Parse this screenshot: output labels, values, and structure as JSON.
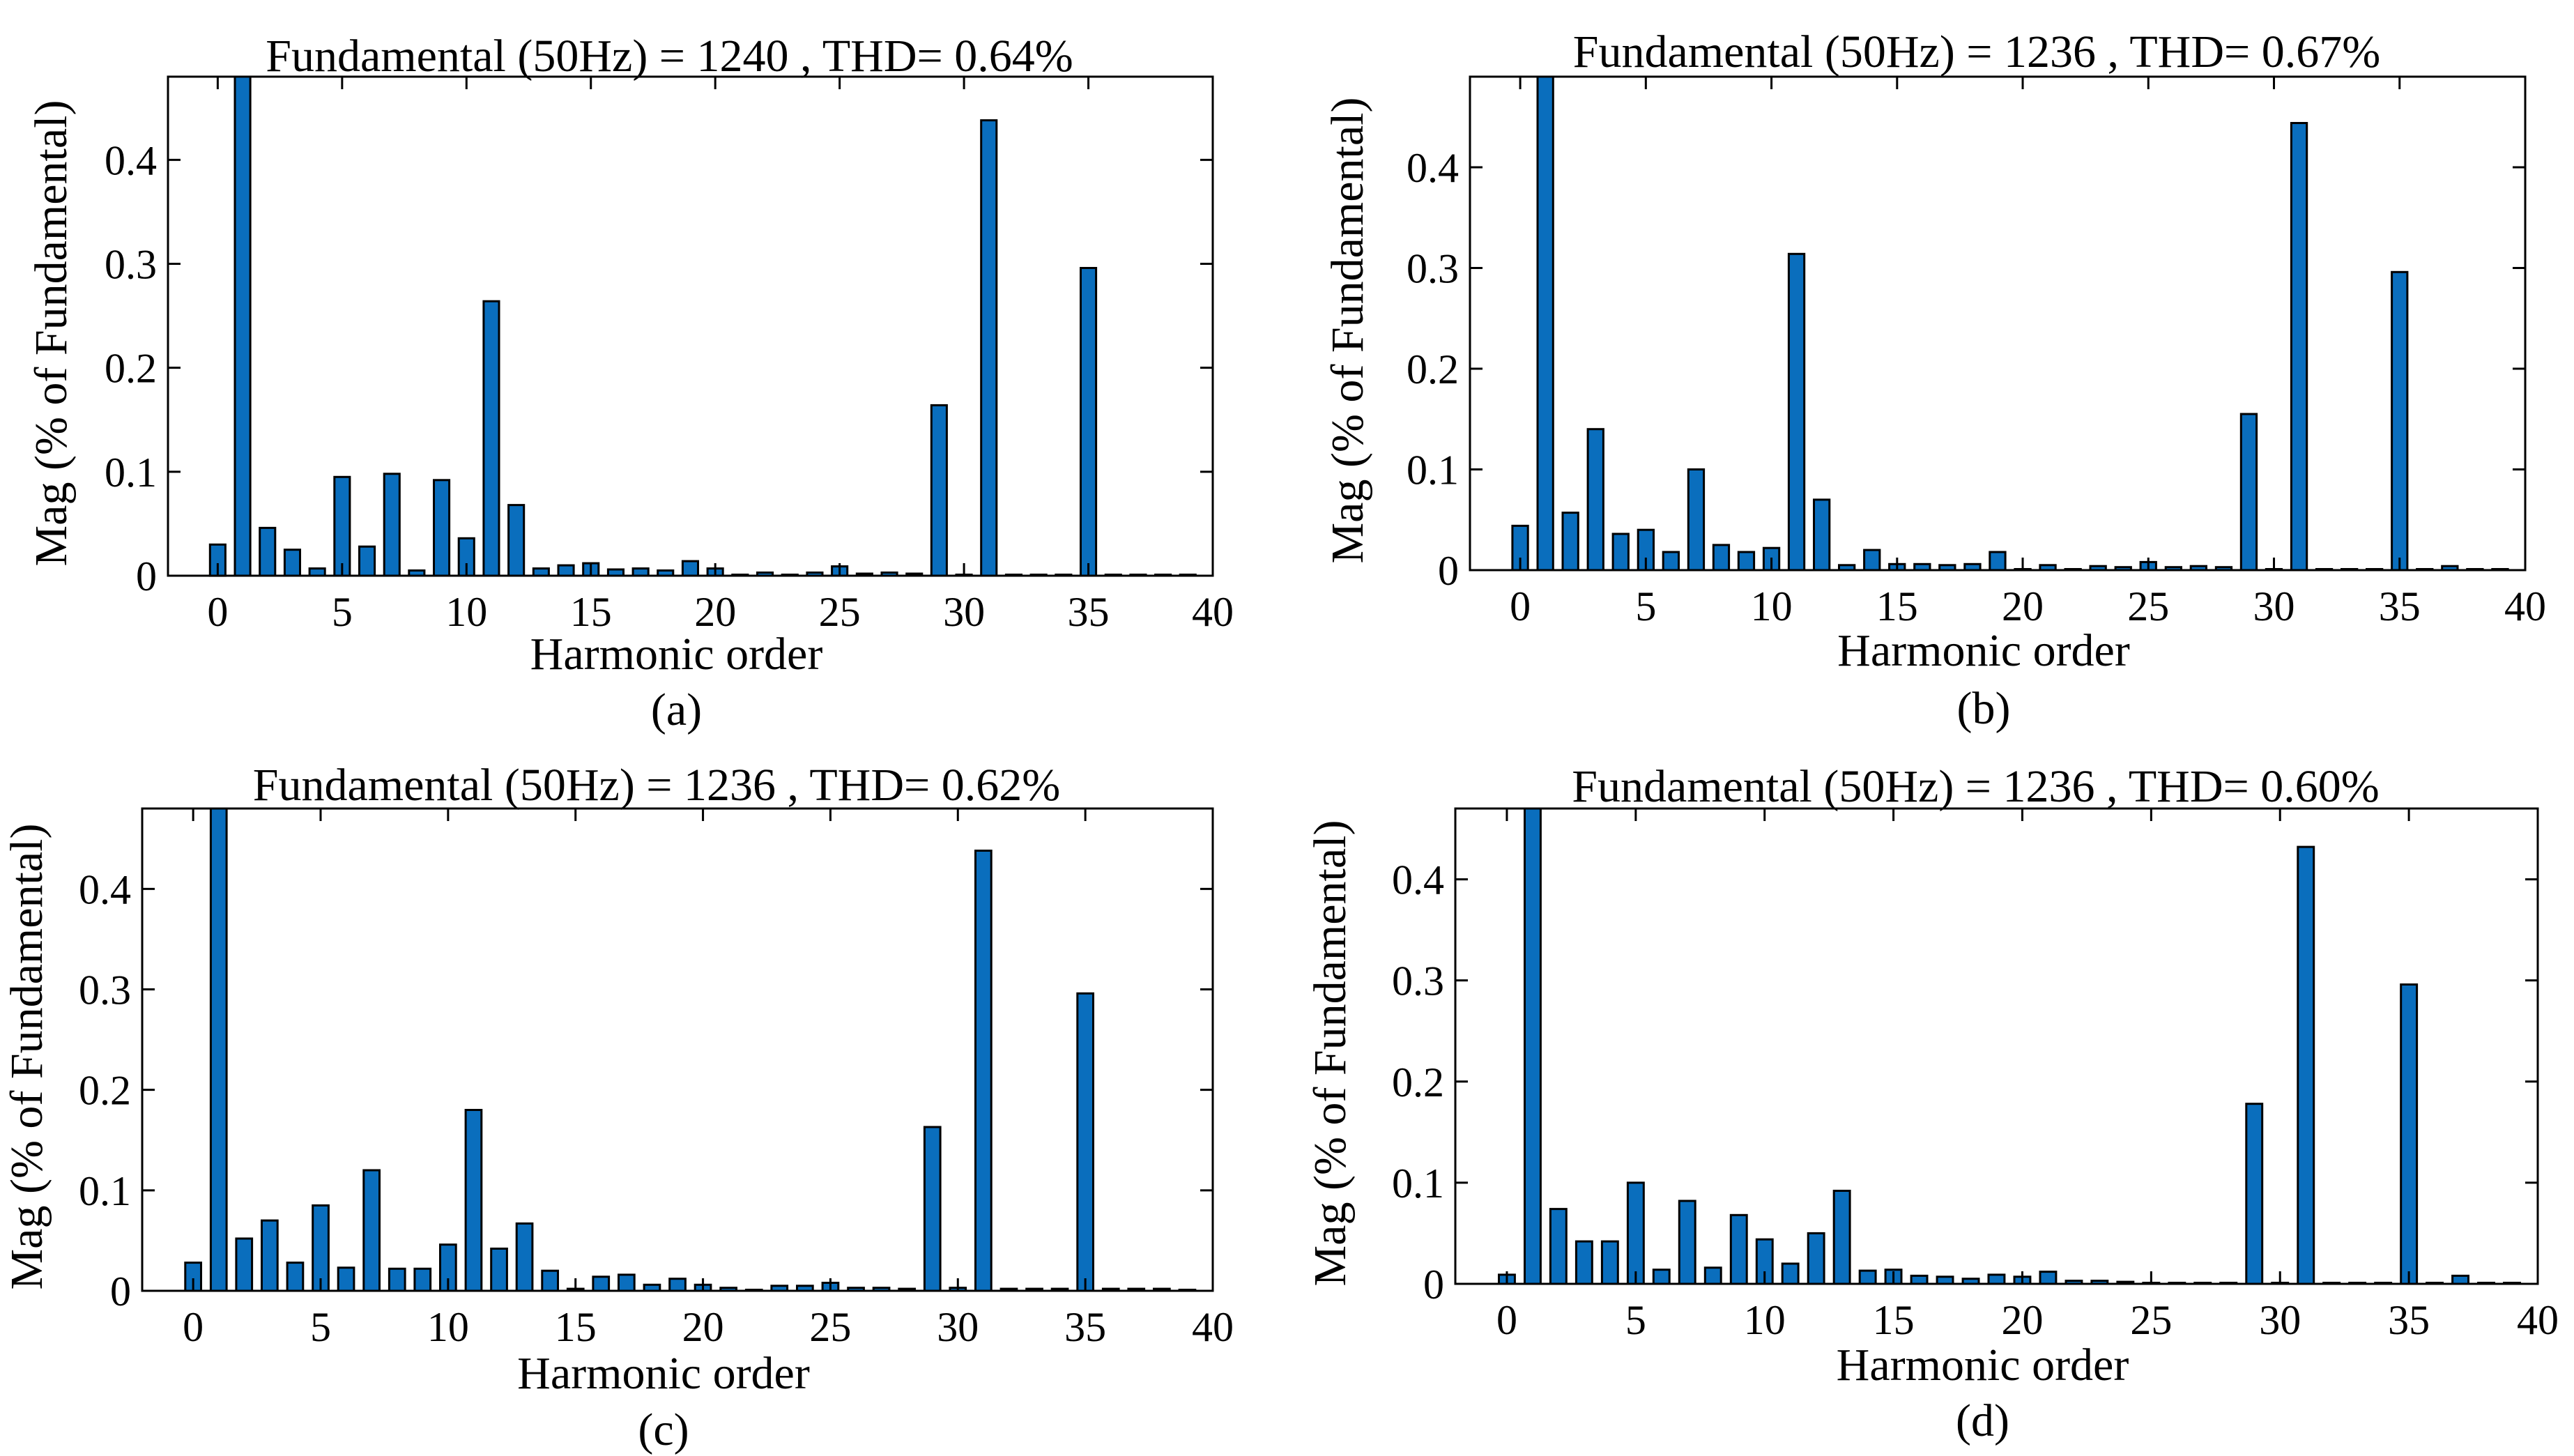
{
  "chart_data": [
    {
      "type": "bar",
      "panel_label": "(a)",
      "title": "Fundamental (50Hz) = 1240 , THD= 0.64%",
      "xlabel": "Harmonic order",
      "ylabel": "Mag (% of Fundamental)",
      "xlim": [
        -2,
        40
      ],
      "ylim": [
        0,
        0.48
      ],
      "xticks": [
        0,
        5,
        10,
        15,
        20,
        25,
        30,
        35,
        40
      ],
      "yticks": [
        0,
        0.1,
        0.2,
        0.3,
        0.4
      ],
      "ytick_labels": [
        "0",
        "0.1",
        "0.2",
        "0.3",
        "0.4"
      ],
      "x": [
        0,
        1,
        2,
        3,
        4,
        5,
        6,
        7,
        8,
        9,
        10,
        11,
        12,
        13,
        14,
        15,
        16,
        17,
        18,
        19,
        20,
        21,
        22,
        23,
        24,
        25,
        26,
        27,
        28,
        29,
        30,
        31,
        32,
        33,
        34,
        35,
        36,
        37,
        38,
        39
      ],
      "values": [
        0.03,
        0.48,
        0.046,
        0.025,
        0.007,
        0.095,
        0.028,
        0.098,
        0.005,
        0.092,
        0.036,
        0.264,
        0.068,
        0.007,
        0.01,
        0.012,
        0.006,
        0.007,
        0.005,
        0.014,
        0.007,
        0,
        0.003,
        0,
        0.003,
        0.009,
        0.002,
        0.003,
        0.002,
        0.164,
        0,
        0.438,
        0.001,
        0.001,
        0.001,
        0.296,
        0,
        0,
        0,
        0
      ],
      "bar_color": "#0a6ebd"
    },
    {
      "type": "bar",
      "panel_label": "(b)",
      "title": "Fundamental (50Hz) = 1236 , THD= 0.67%",
      "xlabel": "Harmonic order",
      "ylabel": "Mag (% of Fundamental)",
      "xlim": [
        -2,
        40
      ],
      "ylim": [
        0,
        0.49
      ],
      "xticks": [
        0,
        5,
        10,
        15,
        20,
        25,
        30,
        35,
        40
      ],
      "yticks": [
        0,
        0.1,
        0.2,
        0.3,
        0.4
      ],
      "ytick_labels": [
        "0",
        "0.1",
        "0.2",
        "0.3",
        "0.4"
      ],
      "x": [
        0,
        1,
        2,
        3,
        4,
        5,
        6,
        7,
        8,
        9,
        10,
        11,
        12,
        13,
        14,
        15,
        16,
        17,
        18,
        19,
        20,
        21,
        22,
        23,
        24,
        25,
        26,
        27,
        28,
        29,
        30,
        31,
        32,
        33,
        34,
        35,
        36,
        37,
        38,
        39
      ],
      "values": [
        0.044,
        0.49,
        0.057,
        0.14,
        0.036,
        0.04,
        0.018,
        0.1,
        0.025,
        0.018,
        0.022,
        0.314,
        0.07,
        0.005,
        0.02,
        0.006,
        0.006,
        0.005,
        0.006,
        0.018,
        0,
        0.005,
        0,
        0.004,
        0.003,
        0.008,
        0.003,
        0.004,
        0.003,
        0.155,
        0,
        0.444,
        0.001,
        0.001,
        0.001,
        0.296,
        0,
        0.004,
        0.001,
        0.001
      ],
      "bar_color": "#0a6ebd"
    },
    {
      "type": "bar",
      "panel_label": "(c)",
      "title": "Fundamental (50Hz) = 1236 , THD= 0.62%",
      "xlabel": "Harmonic order",
      "ylabel": "Mag (% of Fundamental)",
      "xlim": [
        -2,
        40
      ],
      "ylim": [
        0,
        0.48
      ],
      "xticks": [
        0,
        5,
        10,
        15,
        20,
        25,
        30,
        35,
        40
      ],
      "yticks": [
        0,
        0.1,
        0.2,
        0.3,
        0.4
      ],
      "ytick_labels": [
        "0",
        "0.1",
        "0.2",
        "0.3",
        "0.4"
      ],
      "x": [
        0,
        1,
        2,
        3,
        4,
        5,
        6,
        7,
        8,
        9,
        10,
        11,
        12,
        13,
        14,
        15,
        16,
        17,
        18,
        19,
        20,
        21,
        22,
        23,
        24,
        25,
        26,
        27,
        28,
        29,
        30,
        31,
        32,
        33,
        34,
        35,
        36,
        37,
        38,
        39
      ],
      "values": [
        0.028,
        0.48,
        0.052,
        0.07,
        0.028,
        0.085,
        0.023,
        0.12,
        0.022,
        0.022,
        0.046,
        0.18,
        0.042,
        0.067,
        0.02,
        0.002,
        0.014,
        0.016,
        0.006,
        0.012,
        0.006,
        0.003,
        0,
        0.005,
        0.005,
        0.008,
        0.003,
        0.003,
        0.002,
        0.163,
        0.003,
        0.438,
        0.002,
        0.002,
        0.002,
        0.296,
        0.002,
        0.002,
        0.002,
        0.001
      ],
      "bar_color": "#0a6ebd"
    },
    {
      "type": "bar",
      "panel_label": "(d)",
      "title": "Fundamental (50Hz) = 1236 , THD= 0.60%",
      "xlabel": "Harmonic order",
      "ylabel": "Mag (% of Fundamental)",
      "xlim": [
        -2,
        40
      ],
      "ylim": [
        0,
        0.47
      ],
      "xticks": [
        0,
        5,
        10,
        15,
        20,
        25,
        30,
        35,
        40
      ],
      "yticks": [
        0,
        0.1,
        0.2,
        0.3,
        0.4
      ],
      "ytick_labels": [
        "0",
        "0.1",
        "0.2",
        "0.3",
        "0.4"
      ],
      "x": [
        0,
        1,
        2,
        3,
        4,
        5,
        6,
        7,
        8,
        9,
        10,
        11,
        12,
        13,
        14,
        15,
        16,
        17,
        18,
        19,
        20,
        21,
        22,
        23,
        24,
        25,
        26,
        27,
        28,
        29,
        30,
        31,
        32,
        33,
        34,
        35,
        36,
        37,
        38,
        39
      ],
      "values": [
        0.009,
        0.47,
        0.074,
        0.042,
        0.042,
        0.1,
        0.014,
        0.082,
        0.016,
        0.068,
        0.044,
        0.02,
        0.05,
        0.092,
        0.013,
        0.014,
        0.008,
        0.007,
        0.005,
        0.009,
        0.007,
        0.012,
        0.003,
        0.003,
        0.002,
        0,
        0.001,
        0.001,
        0.001,
        0.178,
        0,
        0.432,
        0.001,
        0.001,
        0.001,
        0.296,
        0,
        0.008,
        0.001,
        0.001
      ],
      "bar_color": "#0a6ebd"
    }
  ]
}
